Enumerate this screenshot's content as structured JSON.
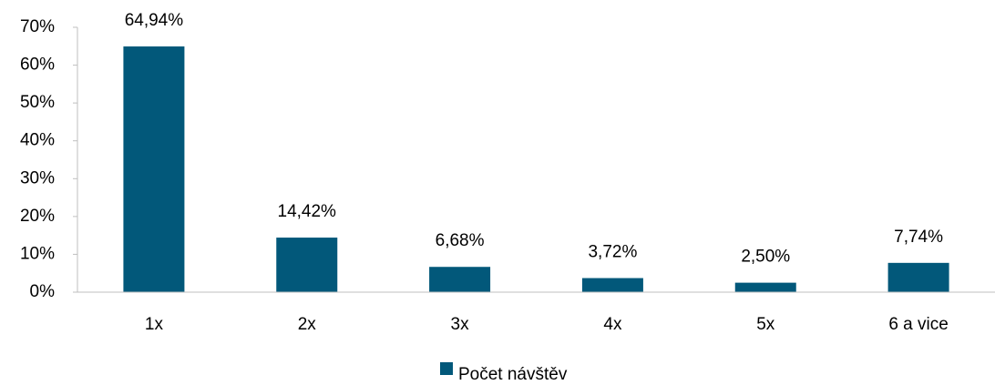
{
  "chart_data": {
    "type": "bar",
    "categories": [
      "1x",
      "2x",
      "3x",
      "4x",
      "5x",
      "6 a vice"
    ],
    "series": [
      {
        "name": "Počet návštěv",
        "color": "#02587a",
        "values": [
          64.94,
          14.42,
          6.68,
          3.72,
          2.5,
          7.74
        ],
        "value_labels": [
          "64,94%",
          "14,42%",
          "6,68%",
          "3,72%",
          "2,50%",
          "7,74%"
        ]
      }
    ],
    "ylim": [
      0,
      70
    ],
    "yticks": [
      {
        "value": 0,
        "label": "0%"
      },
      {
        "value": 10,
        "label": "10%"
      },
      {
        "value": 20,
        "label": "20%"
      },
      {
        "value": 30,
        "label": "30%"
      },
      {
        "value": 40,
        "label": "40%"
      },
      {
        "value": 50,
        "label": "50%"
      },
      {
        "value": 60,
        "label": "60%"
      },
      {
        "value": 70,
        "label": "70%"
      }
    ],
    "grid": false,
    "legend": "bottom"
  }
}
